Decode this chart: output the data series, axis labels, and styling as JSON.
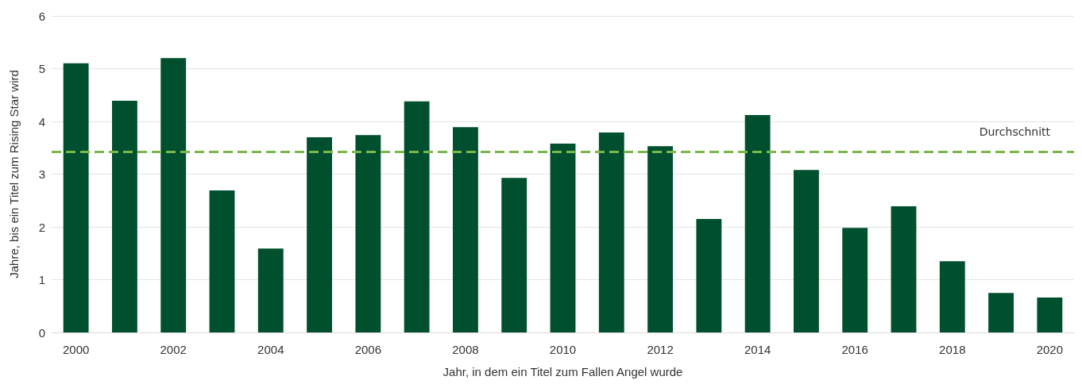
{
  "chart_data": {
    "type": "bar",
    "xlabel": "Jahr, in dem ein Titel zum Fallen Angel wurde",
    "ylabel": "Jahre, bis ein Titel zum Rising Star wird",
    "categories": [
      "2000",
      null,
      "2002",
      null,
      "2004",
      null,
      "2006",
      null,
      "2008",
      null,
      "2010",
      null,
      "2012",
      null,
      "2014",
      null,
      "2016",
      null,
      "2018",
      null,
      "2020"
    ],
    "values": [
      5.1,
      4.39,
      5.2,
      2.69,
      1.59,
      3.7,
      3.74,
      4.38,
      3.89,
      2.93,
      3.58,
      3.79,
      3.53,
      2.15,
      4.12,
      3.08,
      1.98,
      2.39,
      1.35,
      0.75,
      0.66
    ],
    "color": "#00502f",
    "ylim": [
      0,
      6
    ],
    "yticks": [
      0,
      1,
      2,
      3,
      4,
      5,
      6
    ],
    "grid": "y",
    "ref_lines": [
      {
        "axis": "y",
        "value": 3.43,
        "label": "Durchschnitt",
        "color": "#7ab648",
        "line_style": "dashed"
      }
    ]
  }
}
